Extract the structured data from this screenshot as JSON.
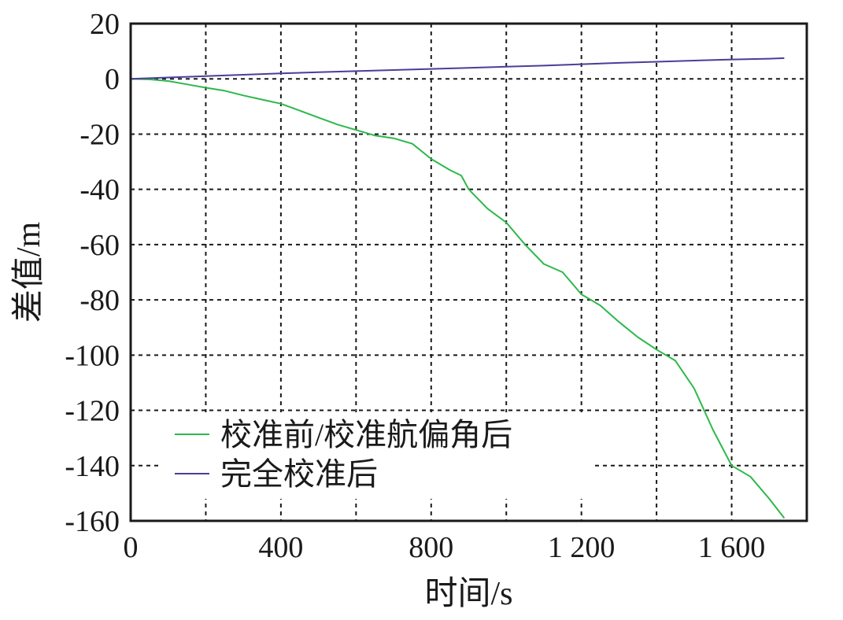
{
  "chart_data": {
    "type": "line",
    "xlabel": "时间/s",
    "ylabel": "差值/m",
    "xlim": [
      0,
      1800
    ],
    "ylim": [
      -160,
      20
    ],
    "x_ticks": [
      0,
      400,
      800,
      1200,
      1600
    ],
    "x_tick_labels": [
      "0",
      "400",
      "800",
      "1 200",
      "1 600"
    ],
    "y_ticks": [
      20,
      0,
      -20,
      -40,
      -60,
      -80,
      -100,
      -120,
      -140,
      -160
    ],
    "y_tick_labels": [
      "20",
      "0",
      "-20",
      "-40",
      "-60",
      "-80",
      "-100",
      "-120",
      "-140",
      "-160"
    ],
    "grid": true,
    "legend_position": "bottom-left",
    "series": [
      {
        "name": "校准前/校准航偏角后",
        "color": "#2db84a",
        "x": [
          0,
          50,
          100,
          150,
          200,
          250,
          300,
          350,
          400,
          450,
          500,
          550,
          600,
          650,
          700,
          750,
          800,
          850,
          880,
          900,
          950,
          1000,
          1050,
          1100,
          1150,
          1200,
          1250,
          1300,
          1350,
          1400,
          1450,
          1500,
          1520,
          1550,
          1600,
          1650,
          1700,
          1740
        ],
        "y": [
          0,
          -0.2,
          -0.8,
          -2,
          -3.2,
          -4.3,
          -6,
          -7.5,
          -9,
          -11.5,
          -14,
          -16.5,
          -18.5,
          -20.5,
          -21.5,
          -23.5,
          -29,
          -33,
          -35,
          -40,
          -47,
          -52,
          -60,
          -67,
          -70,
          -78,
          -82,
          -88,
          -93.5,
          -98,
          -102,
          -112,
          -118,
          -127,
          -140,
          -144,
          -152,
          -159
        ]
      },
      {
        "name": "完全校准后",
        "color": "#4b3d9a",
        "x": [
          0,
          100,
          200,
          300,
          400,
          500,
          600,
          700,
          800,
          900,
          1000,
          1100,
          1200,
          1300,
          1400,
          1500,
          1600,
          1700,
          1740
        ],
        "y": [
          0,
          0.5,
          1,
          1.5,
          2,
          2.4,
          2.8,
          3.2,
          3.6,
          4,
          4.4,
          4.8,
          5.3,
          5.8,
          6.2,
          6.6,
          7,
          7.3,
          7.5
        ]
      }
    ]
  }
}
